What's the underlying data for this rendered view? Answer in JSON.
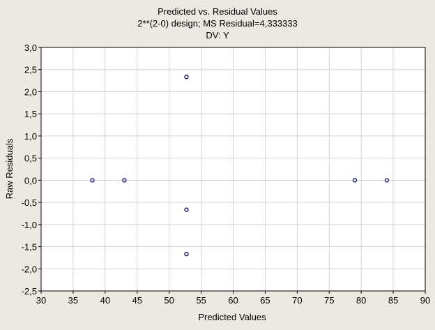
{
  "chart_data": {
    "type": "scatter",
    "title": "Predicted vs. Residual Values",
    "subtitle": "2**(2-0) design; MS Residual=4,333333",
    "subtitle2": "DV: Y",
    "xlabel": "Predicted Values",
    "ylabel": "Raw Residuals",
    "xlim": [
      30,
      90
    ],
    "ylim": [
      -2.5,
      3.0
    ],
    "grid": true,
    "x_ticks": [
      "30",
      "35",
      "40",
      "45",
      "50",
      "55",
      "60",
      "65",
      "70",
      "75",
      "80",
      "85",
      "90"
    ],
    "x_tick_values": [
      30,
      35,
      40,
      45,
      50,
      55,
      60,
      65,
      70,
      75,
      80,
      85,
      90
    ],
    "y_ticks": [
      "3,0",
      "2,5",
      "2,0",
      "1,5",
      "1,0",
      "0,5",
      "0,0",
      "-0,5",
      "-1,0",
      "-1,5",
      "-2,0",
      "-2,5"
    ],
    "y_tick_values": [
      3.0,
      2.5,
      2.0,
      1.5,
      1.0,
      0.5,
      0.0,
      -0.5,
      -1.0,
      -1.5,
      -2.0,
      -2.5
    ],
    "points": [
      {
        "x": 38.0,
        "y": 0.0
      },
      {
        "x": 43.0,
        "y": 0.0
      },
      {
        "x": 52.7,
        "y": 2.333
      },
      {
        "x": 52.7,
        "y": -0.667
      },
      {
        "x": 52.7,
        "y": -1.667
      },
      {
        "x": 79.0,
        "y": 0.0
      },
      {
        "x": 84.0,
        "y": 0.0
      }
    ],
    "colors": {
      "background": "#ece9e2",
      "plot_area": "#ffffff",
      "grid": "#d4d4d4",
      "marker": "#00007f"
    }
  }
}
